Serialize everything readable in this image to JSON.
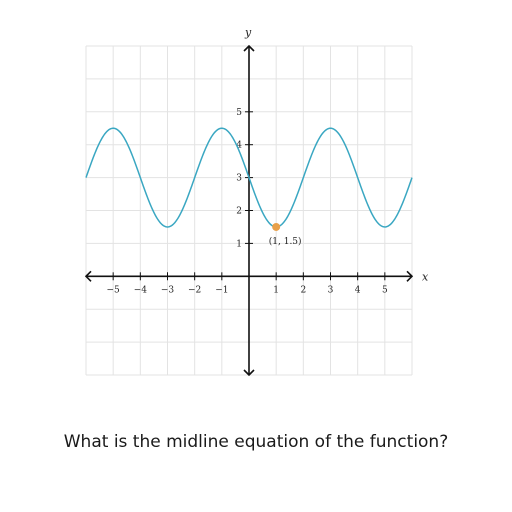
{
  "chart_data": {
    "type": "line",
    "xlabel": "x",
    "ylabel": "y",
    "xlim": [
      -6,
      6
    ],
    "ylim": [
      -3,
      7
    ],
    "grid": true,
    "x_ticks": [
      "-5",
      "-4",
      "-3",
      "-2",
      "-1",
      "1",
      "2",
      "3",
      "4",
      "5"
    ],
    "y_ticks": [
      "1",
      "2",
      "3",
      "4",
      "5"
    ],
    "series": [
      {
        "kind": "function",
        "formula": "3 - 1.5*cos(pi*(x - 1)/2)",
        "x_range": [
          -6,
          6
        ],
        "color": "#3aa7c2",
        "x": [
          -6,
          -5,
          -4,
          -3,
          -2,
          -1,
          0,
          1,
          2,
          3,
          4,
          5,
          6
        ],
        "y": [
          3,
          4.5,
          3,
          1.5,
          3,
          4.5,
          3,
          1.5,
          3,
          4.5,
          3,
          1.5,
          3
        ]
      }
    ],
    "points": [
      {
        "x": 1,
        "y": 1.5,
        "label": "(1, 1.5)",
        "color": "#e8a04a"
      }
    ]
  },
  "question": "What is the midline equation of the function?"
}
